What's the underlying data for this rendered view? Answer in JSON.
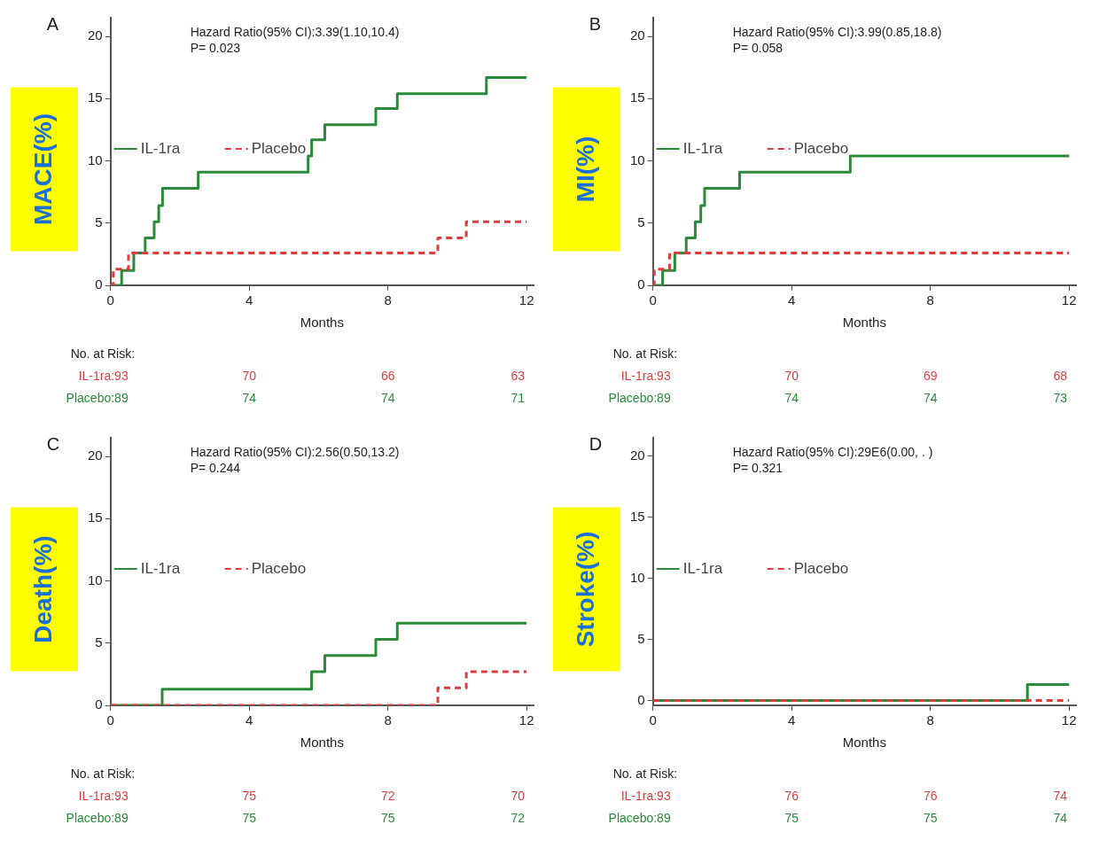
{
  "chart_data": [
    {
      "type": "step",
      "title": "A",
      "xlabel": "Months",
      "ylabel": "MACE(%)",
      "xlim": [
        0,
        12.2
      ],
      "xticks": [
        0,
        4,
        8,
        12
      ],
      "ylim": [
        0,
        21.5
      ],
      "yticks": [
        0,
        5,
        10,
        15,
        20
      ],
      "grid": false,
      "legend": "left",
      "marker": "none",
      "annotations": [
        "Hazard Ratio(95% CI):3.39(1.10,10.4)",
        "P= 0.023",
        "No. at Risk:",
        "IL-1ra:93",
        "70",
        "66",
        "63",
        "Placebo:89",
        "74",
        "74",
        "71"
      ],
      "series": [
        {
          "name": "IL-1ra",
          "color": "#2a8a3a",
          "line_style": "solid",
          "x": [
            0,
            0.32,
            0.67,
            1.0,
            1.26,
            1.39,
            1.5,
            2.53,
            5.7,
            5.8,
            6.18,
            7.65,
            8.27,
            10.84,
            12
          ],
          "values": [
            0,
            1.2,
            2.6,
            3.8,
            5.1,
            6.4,
            7.8,
            9.1,
            10.4,
            11.7,
            12.9,
            14.2,
            15.4,
            16.7,
            16.7
          ]
        },
        {
          "name": "Placebo",
          "color": "#e03c3c",
          "line_style": "dashed",
          "x": [
            0,
            0.08,
            0.52,
            9.44,
            10.26,
            12
          ],
          "values": [
            0,
            1.3,
            2.6,
            3.8,
            5.1,
            5.1
          ]
        }
      ]
    },
    {
      "type": "step",
      "title": "B",
      "xlabel": "Months",
      "ylabel": "MI(%)",
      "xlim": [
        0,
        12.2
      ],
      "xticks": [
        0,
        4,
        8,
        12
      ],
      "ylim": [
        0,
        21.5
      ],
      "yticks": [
        0,
        5,
        10,
        15,
        20
      ],
      "grid": false,
      "legend": "left",
      "marker": "none",
      "annotations": [
        "Hazard Ratio(95% CI):3.99(0.85,18.8)",
        "P= 0.058",
        "No. at Risk:",
        "IL-1ra:93",
        "70",
        "69",
        "68",
        "Placebo:89",
        "74",
        "74",
        "73"
      ],
      "series": [
        {
          "name": "IL-1ra",
          "color": "#2a8a3a",
          "line_style": "solid",
          "x": [
            0,
            0.28,
            0.63,
            0.96,
            1.22,
            1.38,
            1.49,
            2.5,
            5.69,
            12
          ],
          "values": [
            0,
            1.2,
            2.6,
            3.8,
            5.1,
            6.4,
            7.8,
            9.1,
            10.4,
            10.4
          ]
        },
        {
          "name": "Placebo",
          "color": "#e03c3c",
          "line_style": "dashed",
          "x": [
            0,
            0.04,
            0.48,
            12
          ],
          "values": [
            0,
            1.3,
            2.6,
            2.6
          ]
        }
      ]
    },
    {
      "type": "step",
      "title": "C",
      "xlabel": "Months",
      "ylabel": "Death(%)",
      "xlim": [
        0,
        12.2
      ],
      "xticks": [
        0,
        4,
        8,
        12
      ],
      "ylim": [
        0,
        21.5
      ],
      "yticks": [
        0,
        5,
        10,
        15,
        20
      ],
      "grid": false,
      "legend": "left",
      "marker": "none",
      "annotations": [
        "Hazard Ratio(95% CI):2.56(0.50,13.2)",
        "P= 0.244",
        "No. at Risk:",
        "IL-1ra:93",
        "75",
        "72",
        "70",
        "Placebo:89",
        "75",
        "75",
        "72"
      ],
      "series": [
        {
          "name": "IL-1ra",
          "color": "#2a8a3a",
          "line_style": "solid",
          "x": [
            0,
            1.49,
            5.8,
            6.18,
            7.65,
            8.27,
            12
          ],
          "values": [
            0,
            1.3,
            2.7,
            4.0,
            5.3,
            6.6,
            6.6
          ]
        },
        {
          "name": "Placebo",
          "color": "#e03c3c",
          "line_style": "dashed",
          "x": [
            0,
            9.44,
            10.26,
            12
          ],
          "values": [
            0,
            1.4,
            2.7,
            2.7
          ]
        }
      ]
    },
    {
      "type": "step",
      "title": "D",
      "xlabel": "Months",
      "ylabel": "Stroke(%)",
      "xlim": [
        0,
        12.2
      ],
      "xticks": [
        0,
        4,
        8,
        12
      ],
      "ylim": [
        -0.4,
        21.5
      ],
      "yticks": [
        0,
        5,
        10,
        15,
        20
      ],
      "grid": false,
      "legend": "left",
      "marker": "none",
      "annotations": [
        "Hazard Ratio(95% CI):29E6(0.00, . )",
        "P= 0.321",
        "No. at Risk:",
        "IL-1ra:93",
        "76",
        "76",
        "74",
        "Placebo:89",
        "75",
        "75",
        "74"
      ],
      "series": [
        {
          "name": "IL-1ra",
          "color": "#2a8a3a",
          "line_style": "solid",
          "x": [
            0,
            10.8,
            12
          ],
          "values": [
            0,
            1.3,
            1.3
          ]
        },
        {
          "name": "Placebo",
          "color": "#e03c3c",
          "line_style": "dashed",
          "x": [
            0,
            12
          ],
          "values": [
            0,
            0
          ]
        }
      ]
    }
  ]
}
